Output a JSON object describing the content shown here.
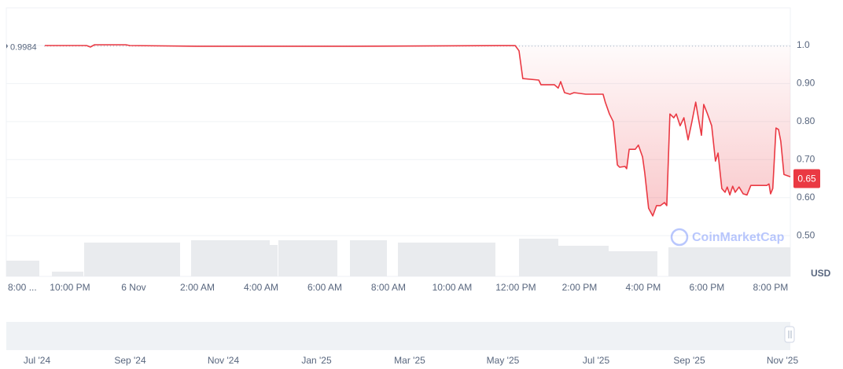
{
  "chart_data": {
    "type": "line",
    "y_unit": "USD",
    "watermark": "CoinMarketCap",
    "baseline": 0.9984,
    "current_price": 0.65,
    "line_color": "#ea3943",
    "grid": true,
    "xlim": [
      -4,
      20.62
    ],
    "xticks": [
      {
        "value": -4,
        "label": "8:00 ..."
      },
      {
        "value": -2,
        "label": "10:00 PM"
      },
      {
        "value": 0,
        "label": "6 Nov"
      },
      {
        "value": 2,
        "label": "2:00 AM"
      },
      {
        "value": 4,
        "label": "4:00 AM"
      },
      {
        "value": 6,
        "label": "6:00 AM"
      },
      {
        "value": 8,
        "label": "8:00 AM"
      },
      {
        "value": 10,
        "label": "10:00 AM"
      },
      {
        "value": 12,
        "label": "12:00 PM"
      },
      {
        "value": 14,
        "label": "2:00 PM"
      },
      {
        "value": 16,
        "label": "4:00 PM"
      },
      {
        "value": 18,
        "label": "6:00 PM"
      },
      {
        "value": 20,
        "label": "8:00 PM"
      }
    ],
    "ylim": [
      0.393,
      1.099
    ],
    "yticks": [
      {
        "value": 1,
        "label": "1.0"
      },
      {
        "value": 0.9,
        "label": "0.90"
      },
      {
        "value": 0.8,
        "label": "0.80"
      },
      {
        "value": 0.7,
        "label": "0.70"
      },
      {
        "value": 0.6,
        "label": "0.60"
      },
      {
        "value": 0.5,
        "label": "0.50"
      }
    ],
    "x": [
      -2.79,
      -1.48,
      -1.36,
      -1.23,
      -0.25,
      -0.12,
      1.98,
      4.69,
      6.91,
      11.98,
      12.1,
      12.22,
      12.72,
      12.79,
      13.21,
      13.33,
      13.41,
      13.53,
      13.7,
      13.83,
      14.2,
      14.74,
      14.81,
      14.94,
      15.06,
      15.19,
      15.26,
      15.43,
      15.48,
      15.56,
      15.75,
      15.85,
      15.98,
      16.05,
      16.17,
      16.3,
      16.42,
      16.54,
      16.67,
      16.74,
      16.84,
      16.96,
      17.04,
      17.16,
      17.28,
      17.41,
      17.53,
      17.65,
      17.73,
      17.83,
      17.9,
      18.02,
      18.15,
      18.27,
      18.35,
      18.47,
      18.57,
      18.64,
      18.72,
      18.81,
      18.89,
      19.01,
      19.14,
      19.26,
      19.38,
      19.88,
      19.95,
      20.0,
      20.07,
      20.17,
      20.25,
      20.32,
      20.42,
      20.62
    ],
    "values": [
      1.0,
      1.0,
      0.996,
      1.002,
      1.002,
      1.0,
      0.998,
      0.998,
      0.998,
      1.0,
      0.986,
      0.913,
      0.909,
      0.897,
      0.897,
      0.888,
      0.905,
      0.876,
      0.872,
      0.876,
      0.872,
      0.872,
      0.851,
      0.82,
      0.8,
      0.686,
      0.68,
      0.682,
      0.676,
      0.727,
      0.727,
      0.738,
      0.707,
      0.665,
      0.572,
      0.552,
      0.579,
      0.579,
      0.587,
      0.579,
      0.82,
      0.81,
      0.82,
      0.789,
      0.81,
      0.752,
      0.8,
      0.851,
      0.81,
      0.764,
      0.845,
      0.82,
      0.789,
      0.696,
      0.717,
      0.624,
      0.614,
      0.628,
      0.607,
      0.63,
      0.614,
      0.628,
      0.61,
      0.607,
      0.632,
      0.632,
      0.636,
      0.61,
      0.624,
      0.783,
      0.779,
      0.748,
      0.661,
      0.655
    ],
    "navigator_labels": [
      "Jul '24",
      "Sep '24",
      "Nov '24",
      "Jan '25",
      "Mar '25",
      "May '25",
      "Jul '25",
      "Sep '25",
      "Nov '25"
    ]
  }
}
